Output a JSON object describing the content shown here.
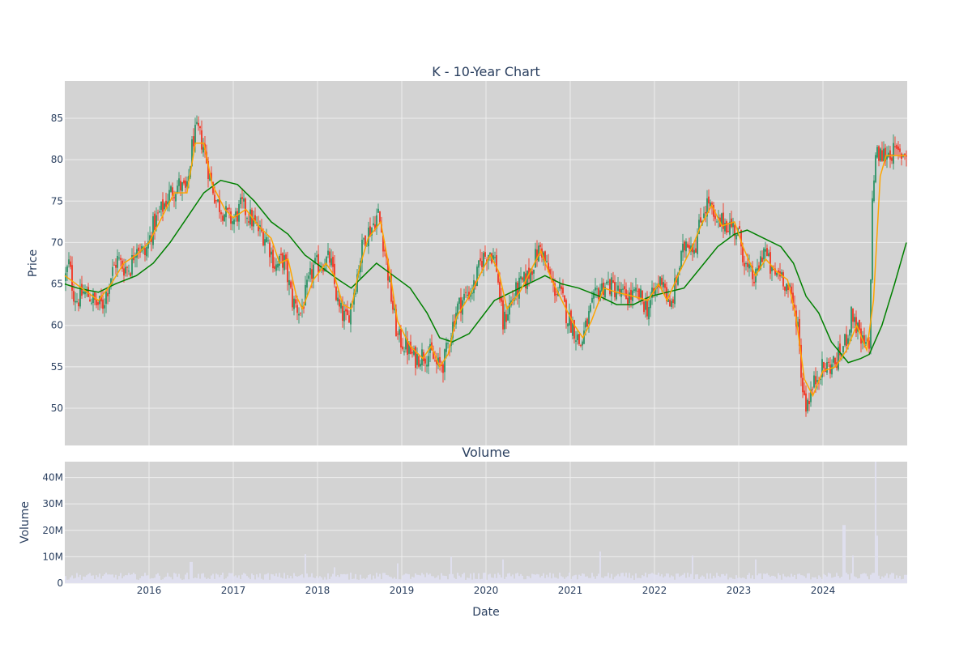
{
  "chart_data": [
    {
      "type": "candlestick",
      "title": "K - 10-Year Chart",
      "xlabel": "",
      "ylabel": "Price",
      "ylim": [
        45.5,
        89.5
      ],
      "yticks": [
        50,
        55,
        60,
        65,
        70,
        75,
        80,
        85
      ],
      "xlim": [
        2015.0,
        2025.0
      ],
      "grid": true,
      "up_color": "#3d9970",
      "down_color": "#ef4433",
      "ma_short_color": "#ffa500",
      "ma_long_color": "#008000",
      "price_path": [
        [
          2015.0,
          65.5
        ],
        [
          2015.05,
          67.5
        ],
        [
          2015.1,
          64.0
        ],
        [
          2015.15,
          63.0
        ],
        [
          2015.22,
          64.0
        ],
        [
          2015.3,
          63.5
        ],
        [
          2015.38,
          62.5
        ],
        [
          2015.45,
          62.5
        ],
        [
          2015.55,
          66.0
        ],
        [
          2015.62,
          68.0
        ],
        [
          2015.7,
          67.0
        ],
        [
          2015.78,
          67.0
        ],
        [
          2015.85,
          70.0
        ],
        [
          2015.95,
          68.5
        ],
        [
          2016.05,
          72.0
        ],
        [
          2016.15,
          74.0
        ],
        [
          2016.25,
          76.0
        ],
        [
          2016.35,
          77.0
        ],
        [
          2016.45,
          76.0
        ],
        [
          2016.52,
          82.5
        ],
        [
          2016.58,
          83.5
        ],
        [
          2016.65,
          81.5
        ],
        [
          2016.72,
          78.0
        ],
        [
          2016.8,
          75.0
        ],
        [
          2016.9,
          73.5
        ],
        [
          2017.0,
          72.5
        ],
        [
          2017.1,
          74.5
        ],
        [
          2017.2,
          73.0
        ],
        [
          2017.3,
          71.5
        ],
        [
          2017.4,
          70.5
        ],
        [
          2017.5,
          67.0
        ],
        [
          2017.6,
          68.0
        ],
        [
          2017.7,
          63.0
        ],
        [
          2017.8,
          61.5
        ],
        [
          2017.88,
          64.5
        ],
        [
          2017.95,
          67.0
        ],
        [
          2018.05,
          67.5
        ],
        [
          2018.15,
          68.0
        ],
        [
          2018.25,
          62.0
        ],
        [
          2018.35,
          60.5
        ],
        [
          2018.45,
          65.0
        ],
        [
          2018.55,
          70.5
        ],
        [
          2018.65,
          72.0
        ],
        [
          2018.72,
          73.5
        ],
        [
          2018.8,
          69.0
        ],
        [
          2018.88,
          63.0
        ],
        [
          2018.95,
          58.5
        ],
        [
          2019.05,
          57.5
        ],
        [
          2019.15,
          56.0
        ],
        [
          2019.25,
          56.5
        ],
        [
          2019.35,
          56.5
        ],
        [
          2019.42,
          55.0
        ],
        [
          2019.5,
          55.5
        ],
        [
          2019.58,
          59.0
        ],
        [
          2019.65,
          62.0
        ],
        [
          2019.75,
          63.5
        ],
        [
          2019.85,
          64.5
        ],
        [
          2019.95,
          68.0
        ],
        [
          2020.05,
          69.0
        ],
        [
          2020.12,
          67.5
        ],
        [
          2020.2,
          60.0
        ],
        [
          2020.28,
          62.5
        ],
        [
          2020.38,
          64.5
        ],
        [
          2020.48,
          65.5
        ],
        [
          2020.58,
          68.0
        ],
        [
          2020.65,
          69.5
        ],
        [
          2020.72,
          67.0
        ],
        [
          2020.8,
          64.5
        ],
        [
          2020.88,
          64.0
        ],
        [
          2020.95,
          61.5
        ],
        [
          2021.05,
          59.5
        ],
        [
          2021.12,
          57.5
        ],
        [
          2021.22,
          61.0
        ],
        [
          2021.32,
          64.0
        ],
        [
          2021.42,
          65.0
        ],
        [
          2021.52,
          64.5
        ],
        [
          2021.62,
          63.5
        ],
        [
          2021.72,
          63.5
        ],
        [
          2021.82,
          63.5
        ],
        [
          2021.92,
          62.0
        ],
        [
          2022.0,
          64.0
        ],
        [
          2022.1,
          66.0
        ],
        [
          2022.18,
          61.5
        ],
        [
          2022.28,
          66.5
        ],
        [
          2022.38,
          70.5
        ],
        [
          2022.48,
          69.5
        ],
        [
          2022.58,
          74.0
        ],
        [
          2022.65,
          75.0
        ],
        [
          2022.72,
          72.0
        ],
        [
          2022.82,
          72.5
        ],
        [
          2022.92,
          72.0
        ],
        [
          2023.0,
          71.0
        ],
        [
          2023.1,
          66.5
        ],
        [
          2023.2,
          65.5
        ],
        [
          2023.3,
          69.5
        ],
        [
          2023.4,
          66.0
        ],
        [
          2023.5,
          66.5
        ],
        [
          2023.6,
          64.0
        ],
        [
          2023.7,
          60.5
        ],
        [
          2023.75,
          53.0
        ],
        [
          2023.8,
          50.5
        ],
        [
          2023.88,
          52.5
        ],
        [
          2023.95,
          54.5
        ],
        [
          2024.05,
          55.0
        ],
        [
          2024.15,
          55.5
        ],
        [
          2024.25,
          57.5
        ],
        [
          2024.35,
          61.5
        ],
        [
          2024.45,
          58.0
        ],
        [
          2024.55,
          57.0
        ],
        [
          2024.58,
          73.5
        ],
        [
          2024.62,
          80.5
        ],
        [
          2024.7,
          80.5
        ],
        [
          2024.8,
          81.0
        ],
        [
          2024.9,
          80.5
        ],
        [
          2024.99,
          81.0
        ]
      ],
      "ma_short": [
        [
          2015.0,
          66.0
        ],
        [
          2015.2,
          64.5
        ],
        [
          2015.4,
          63.0
        ],
        [
          2015.55,
          65.0
        ],
        [
          2015.7,
          67.5
        ],
        [
          2015.85,
          68.5
        ],
        [
          2016.0,
          70.0
        ],
        [
          2016.15,
          73.0
        ],
        [
          2016.3,
          76.0
        ],
        [
          2016.45,
          76.0
        ],
        [
          2016.55,
          82.0
        ],
        [
          2016.65,
          82.0
        ],
        [
          2016.75,
          77.0
        ],
        [
          2016.9,
          74.0
        ],
        [
          2017.0,
          73.0
        ],
        [
          2017.15,
          74.0
        ],
        [
          2017.3,
          72.0
        ],
        [
          2017.45,
          70.5
        ],
        [
          2017.55,
          67.5
        ],
        [
          2017.65,
          68.0
        ],
        [
          2017.75,
          63.5
        ],
        [
          2017.82,
          62.0
        ],
        [
          2017.95,
          65.5
        ],
        [
          2018.1,
          67.5
        ],
        [
          2018.2,
          66.0
        ],
        [
          2018.3,
          62.5
        ],
        [
          2018.4,
          62.0
        ],
        [
          2018.5,
          67.0
        ],
        [
          2018.6,
          70.5
        ],
        [
          2018.75,
          72.5
        ],
        [
          2018.85,
          67.0
        ],
        [
          2018.95,
          60.5
        ],
        [
          2019.1,
          57.5
        ],
        [
          2019.25,
          56.0
        ],
        [
          2019.35,
          57.5
        ],
        [
          2019.45,
          55.0
        ],
        [
          2019.55,
          56.5
        ],
        [
          2019.65,
          61.0
        ],
        [
          2019.8,
          63.5
        ],
        [
          2019.95,
          66.5
        ],
        [
          2020.05,
          68.5
        ],
        [
          2020.15,
          66.5
        ],
        [
          2020.25,
          62.0
        ],
        [
          2020.4,
          64.0
        ],
        [
          2020.55,
          67.0
        ],
        [
          2020.65,
          69.0
        ],
        [
          2020.78,
          65.5
        ],
        [
          2020.95,
          62.0
        ],
        [
          2021.05,
          60.0
        ],
        [
          2021.15,
          58.5
        ],
        [
          2021.25,
          60.5
        ],
        [
          2021.4,
          64.5
        ],
        [
          2021.55,
          64.0
        ],
        [
          2021.75,
          63.5
        ],
        [
          2021.92,
          63.0
        ],
        [
          2022.05,
          65.0
        ],
        [
          2022.15,
          63.0
        ],
        [
          2022.3,
          66.5
        ],
        [
          2022.45,
          69.5
        ],
        [
          2022.55,
          72.0
        ],
        [
          2022.68,
          74.5
        ],
        [
          2022.8,
          72.0
        ],
        [
          2022.95,
          72.5
        ],
        [
          2023.05,
          69.5
        ],
        [
          2023.2,
          66.0
        ],
        [
          2023.32,
          68.0
        ],
        [
          2023.45,
          66.5
        ],
        [
          2023.58,
          65.5
        ],
        [
          2023.68,
          61.0
        ],
        [
          2023.78,
          53.5
        ],
        [
          2023.88,
          51.5
        ],
        [
          2024.0,
          54.5
        ],
        [
          2024.15,
          55.0
        ],
        [
          2024.28,
          57.0
        ],
        [
          2024.4,
          60.0
        ],
        [
          2024.52,
          57.0
        ],
        [
          2024.6,
          63.0
        ],
        [
          2024.68,
          78.0
        ],
        [
          2024.75,
          80.5
        ],
        [
          2024.99,
          80.5
        ]
      ],
      "ma_long": [
        [
          2015.0,
          65.0
        ],
        [
          2015.15,
          64.5
        ],
        [
          2015.4,
          64.0
        ],
        [
          2015.6,
          65.0
        ],
        [
          2015.85,
          66.0
        ],
        [
          2016.05,
          67.5
        ],
        [
          2016.25,
          70.0
        ],
        [
          2016.45,
          73.0
        ],
        [
          2016.65,
          76.0
        ],
        [
          2016.85,
          77.5
        ],
        [
          2017.05,
          77.0
        ],
        [
          2017.25,
          75.0
        ],
        [
          2017.45,
          72.5
        ],
        [
          2017.65,
          71.0
        ],
        [
          2017.85,
          68.5
        ],
        [
          2018.05,
          67.0
        ],
        [
          2018.25,
          65.5
        ],
        [
          2018.4,
          64.5
        ],
        [
          2018.55,
          66.0
        ],
        [
          2018.7,
          67.5
        ],
        [
          2018.9,
          66.0
        ],
        [
          2019.1,
          64.5
        ],
        [
          2019.3,
          61.5
        ],
        [
          2019.45,
          58.5
        ],
        [
          2019.6,
          58.0
        ],
        [
          2019.8,
          59.0
        ],
        [
          2019.95,
          61.0
        ],
        [
          2020.1,
          63.0
        ],
        [
          2020.3,
          64.0
        ],
        [
          2020.5,
          65.0
        ],
        [
          2020.7,
          66.0
        ],
        [
          2020.9,
          65.0
        ],
        [
          2021.1,
          64.5
        ],
        [
          2021.35,
          63.5
        ],
        [
          2021.55,
          62.5
        ],
        [
          2021.75,
          62.5
        ],
        [
          2021.95,
          63.5
        ],
        [
          2022.15,
          64.0
        ],
        [
          2022.35,
          64.5
        ],
        [
          2022.55,
          67.0
        ],
        [
          2022.75,
          69.5
        ],
        [
          2022.95,
          71.0
        ],
        [
          2023.1,
          71.5
        ],
        [
          2023.3,
          70.5
        ],
        [
          2023.5,
          69.5
        ],
        [
          2023.65,
          67.5
        ],
        [
          2023.8,
          63.5
        ],
        [
          2023.95,
          61.5
        ],
        [
          2024.1,
          58.0
        ],
        [
          2024.3,
          55.5
        ],
        [
          2024.45,
          56.0
        ],
        [
          2024.55,
          56.5
        ],
        [
          2024.7,
          60.0
        ],
        [
          2024.85,
          65.0
        ],
        [
          2024.99,
          70.0
        ]
      ]
    },
    {
      "type": "bar",
      "title": "Volume",
      "xlabel": "Date",
      "ylabel": "Volume",
      "ylim": [
        0,
        46000000
      ],
      "yticks": [
        0,
        10000000,
        20000000,
        30000000,
        40000000
      ],
      "ytick_labels": [
        "0",
        "10M",
        "20M",
        "30M",
        "40M"
      ],
      "xticks": [
        2016,
        2017,
        2018,
        2019,
        2020,
        2021,
        2022,
        2023,
        2024
      ],
      "xtick_labels": [
        "2016",
        "2017",
        "2018",
        "2019",
        "2020",
        "2021",
        "2022",
        "2023",
        "2024"
      ],
      "bar_color": "#e0e0f0",
      "baseline_volume": 2500000,
      "spikes": [
        [
          2016.5,
          8000000
        ],
        [
          2017.85,
          11000000
        ],
        [
          2018.2,
          6000000
        ],
        [
          2018.95,
          7500000
        ],
        [
          2019.58,
          10000000
        ],
        [
          2020.2,
          9000000
        ],
        [
          2021.35,
          12000000
        ],
        [
          2022.45,
          10500000
        ],
        [
          2023.2,
          9000000
        ],
        [
          2024.25,
          22000000
        ],
        [
          2024.35,
          10500000
        ],
        [
          2024.62,
          46000000
        ],
        [
          2024.65,
          18000000
        ]
      ]
    }
  ]
}
